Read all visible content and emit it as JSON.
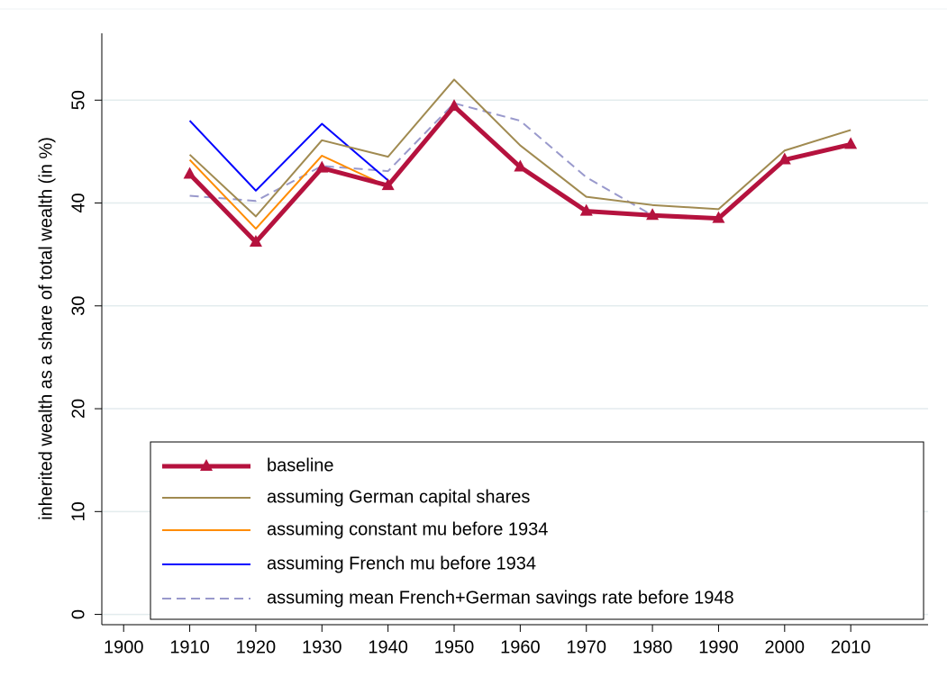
{
  "chart_data": {
    "type": "line",
    "ylabel": "inherited wealth as a share of total wealth (in %)",
    "x": [
      1910,
      1920,
      1930,
      1940,
      1950,
      1960,
      1970,
      1980,
      1990,
      2000,
      2010
    ],
    "series": [
      {
        "name": "baseline",
        "color": "#b5123e",
        "values": [
          42.8,
          36.2,
          43.4,
          41.7,
          49.4,
          43.5,
          39.2,
          38.8,
          38.5,
          44.2,
          45.7
        ]
      },
      {
        "name": "assuming German capital shares",
        "color": "#a08a50",
        "values": [
          44.7,
          38.7,
          46.1,
          44.5,
          52.0,
          45.6,
          40.6,
          39.8,
          39.4,
          45.1,
          47.1
        ]
      },
      {
        "name": "assuming constant mu before 1934",
        "color": "#ff8c00",
        "values": [
          44.2,
          37.5,
          44.6,
          41.6,
          null,
          null,
          null,
          null,
          null,
          null,
          null
        ]
      },
      {
        "name": "assuming French mu before 1934",
        "color": "#0000ff",
        "values": [
          48.0,
          41.2,
          47.7,
          42.2,
          null,
          null,
          null,
          null,
          null,
          null,
          null
        ]
      },
      {
        "name": "assuming mean French+German savings rate before 1948",
        "color": "#9999cc",
        "values": [
          40.7,
          40.2,
          43.6,
          43.1,
          49.7,
          48.0,
          42.5,
          38.8,
          null,
          null,
          null
        ]
      }
    ],
    "xlim": [
      1896.7,
      2021.7
    ],
    "xticks": [
      1900,
      1910,
      1920,
      1930,
      1940,
      1950,
      1960,
      1970,
      1980,
      1990,
      2000,
      2010
    ],
    "ylim": [
      -1,
      56.5
    ],
    "yticks": [
      0,
      10,
      20,
      30,
      40,
      50
    ],
    "grid": true,
    "legend": "bottom"
  }
}
